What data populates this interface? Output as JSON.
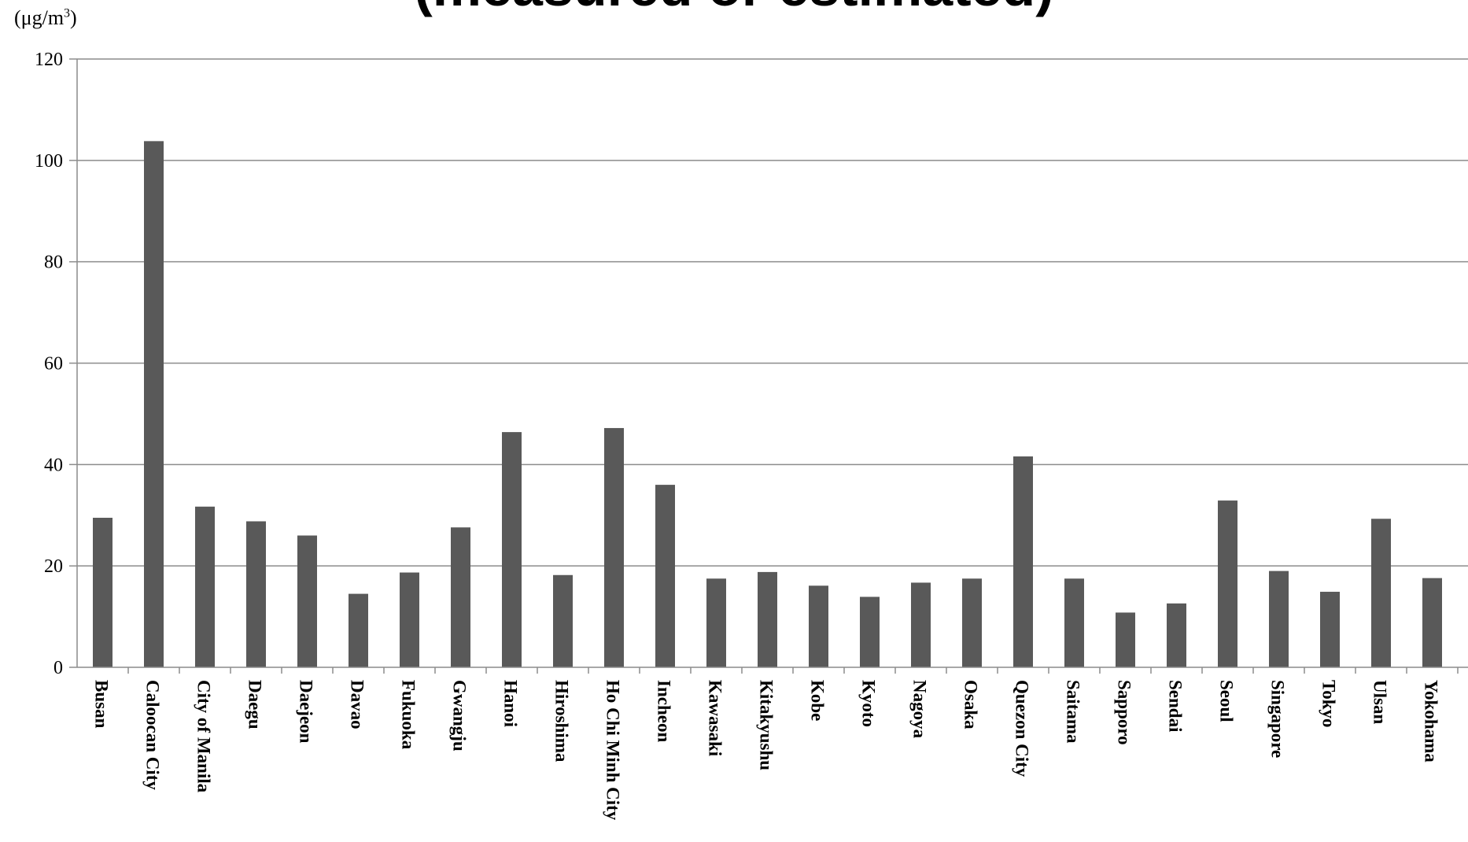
{
  "chart_data": {
    "type": "bar",
    "title": "(measured or estimated)",
    "ylabel": "",
    "unit_prefix": "(μg/m",
    "unit_power": "3",
    "unit_suffix": ")",
    "xlabel": "",
    "ylim": [
      0,
      120
    ],
    "yticks": [
      0,
      20,
      40,
      60,
      80,
      100,
      120
    ],
    "grid": true,
    "bar_color": "#595959",
    "grid_color": "#8c8c8c",
    "categories": [
      "Busan",
      "Caloocan City",
      "City of Manila",
      "Daegu",
      "Daejeon",
      "Davao",
      "Fukuoka",
      "Gwangju",
      "Hanoi",
      "Hiroshima",
      "Ho Chi Minh City",
      "Incheon",
      "Kawasaki",
      "Kitakyushu",
      "Kobe",
      "Kyoto",
      "Nagoya",
      "Osaka",
      "Quezon City",
      "Saitama",
      "Sapporo",
      "Sendai",
      "Seoul",
      "Singapore",
      "Tokyo",
      "Ulsan",
      "Yokohama"
    ],
    "values": [
      29.5,
      103.8,
      31.7,
      28.8,
      26.0,
      14.5,
      18.7,
      27.6,
      46.4,
      18.2,
      47.2,
      36.0,
      17.5,
      18.8,
      16.1,
      13.9,
      16.7,
      17.5,
      41.6,
      17.5,
      10.8,
      12.6,
      32.9,
      19.0,
      14.9,
      29.3,
      17.6
    ]
  }
}
